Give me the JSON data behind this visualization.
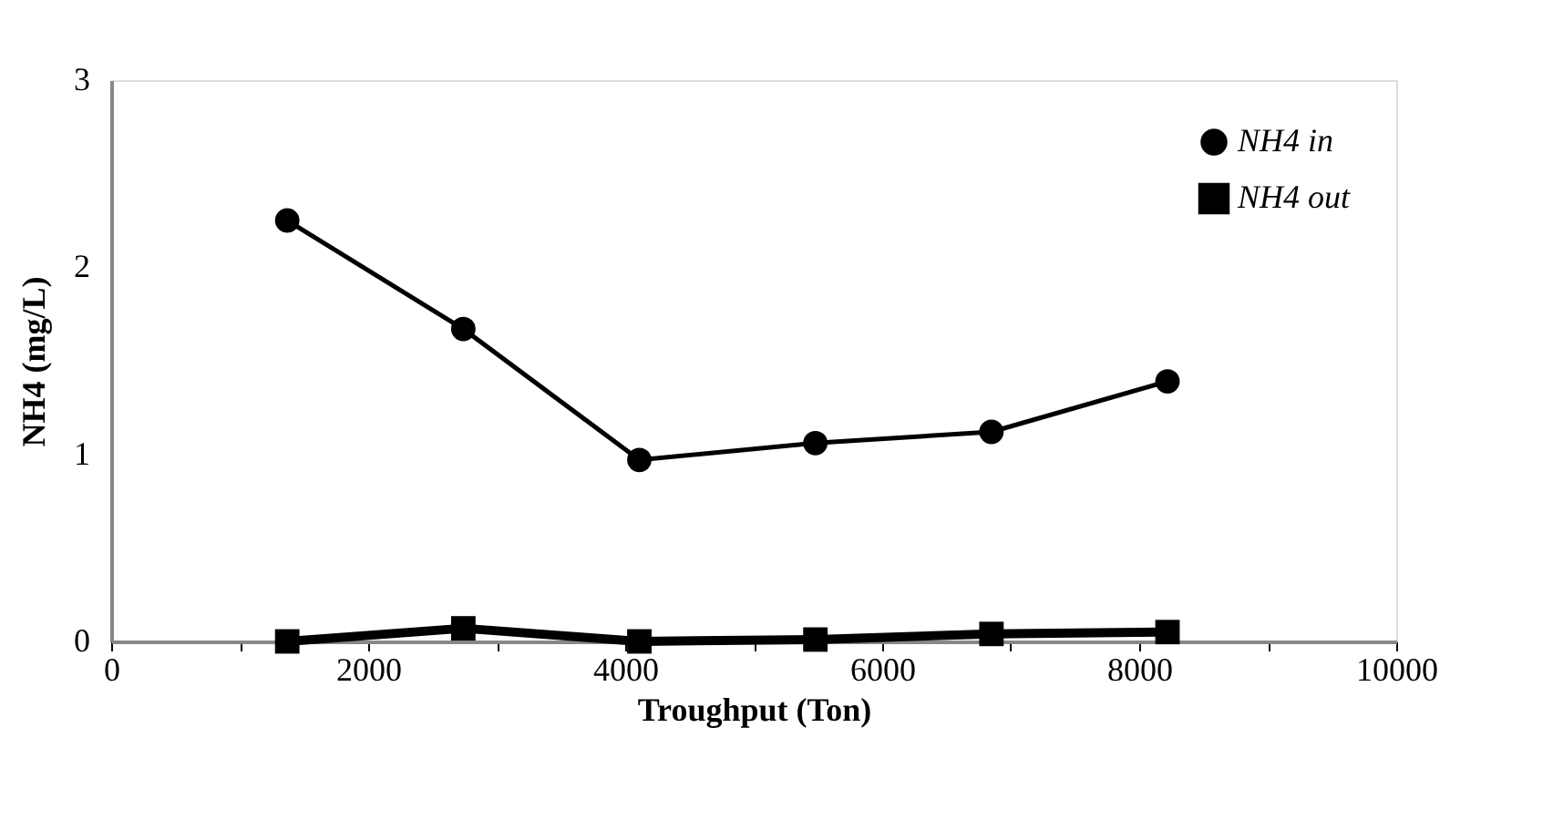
{
  "chart_data": {
    "type": "line",
    "xlabel": "Troughput (Ton)",
    "ylabel": "NH4 (mg/L)",
    "x": [
      1370,
      2740,
      4110,
      5480,
      6850,
      8220
    ],
    "series": [
      {
        "name": "NH4 in",
        "color": "#000000",
        "marker": "circle",
        "values": [
          2.25,
          1.67,
          0.97,
          1.06,
          1.12,
          1.39
        ]
      },
      {
        "name": "NH4 out",
        "color": "#000000",
        "marker": "square",
        "values": [
          0,
          0.07,
          0,
          0.01,
          0.04,
          0.05
        ]
      }
    ],
    "xlim": [
      0,
      10000
    ],
    "xticks": [
      0,
      {
        "value": 1000,
        "label": null
      },
      2000,
      {
        "value": 3000,
        "label": null
      },
      4000,
      {
        "value": 5000,
        "label": null
      },
      6000,
      {
        "value": 7000,
        "label": null
      },
      8000,
      {
        "value": 9000,
        "label": null
      },
      10000
    ],
    "ylim": [
      0,
      3
    ],
    "yticks": [
      0,
      1,
      2,
      3
    ],
    "grid": false,
    "legend": "top right",
    "line_style": "solid"
  }
}
